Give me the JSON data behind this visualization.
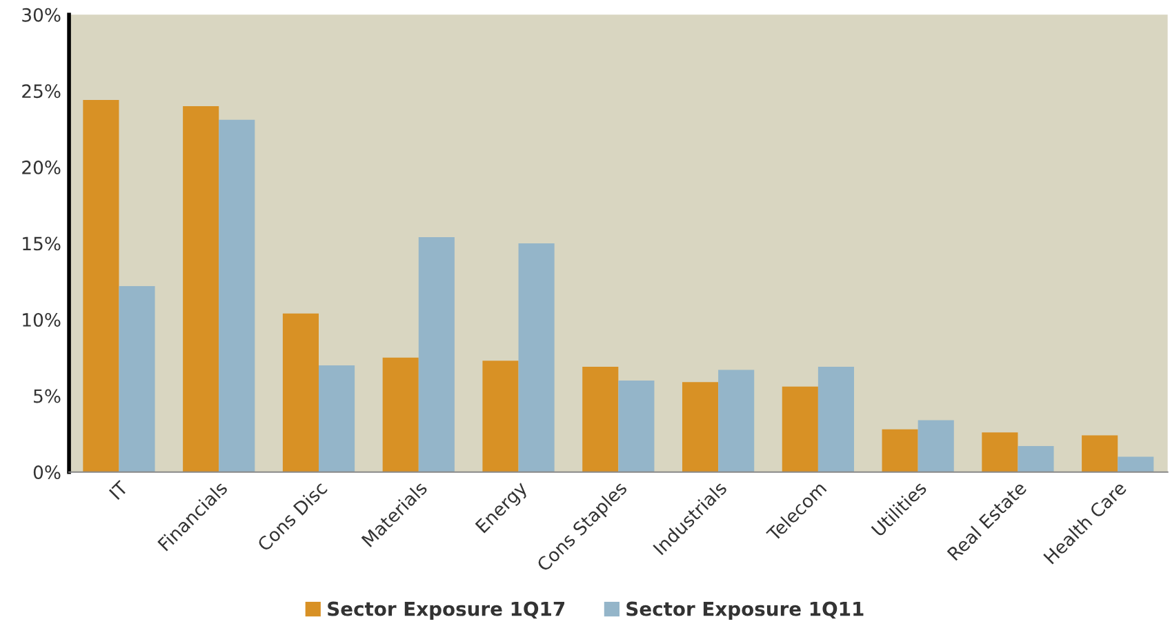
{
  "chart_data": {
    "type": "bar",
    "categories": [
      "IT",
      "Financials",
      "Cons Disc",
      "Materials",
      "Energy",
      "Cons Staples",
      "Industrials",
      "Telecom",
      "Utilities",
      "Real Estate",
      "Health Care"
    ],
    "series": [
      {
        "name": "Sector Exposure 1Q17",
        "color": "#d89125",
        "values": [
          24.4,
          24.0,
          10.4,
          7.5,
          7.3,
          6.9,
          5.9,
          5.6,
          2.8,
          2.6,
          2.4
        ]
      },
      {
        "name": "Sector Exposure 1Q11",
        "color": "#94b5c9",
        "values": [
          12.2,
          23.1,
          7.0,
          15.4,
          15.0,
          6.0,
          6.7,
          6.9,
          3.4,
          1.7,
          1.0
        ]
      }
    ],
    "ylim": [
      0,
      30
    ],
    "yticks": [
      {
        "value": 0,
        "label": "0%"
      },
      {
        "value": 5,
        "label": "5%"
      },
      {
        "value": 10,
        "label": "10%"
      },
      {
        "value": 15,
        "label": "15%"
      },
      {
        "value": 20,
        "label": "20%"
      },
      {
        "value": 25,
        "label": "25%"
      },
      {
        "value": 30,
        "label": "30%"
      }
    ],
    "grid": false,
    "legend": "bottom"
  }
}
